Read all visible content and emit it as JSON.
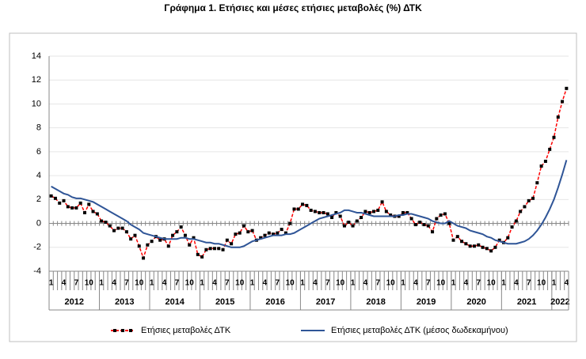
{
  "chart_data": {
    "type": "line",
    "title": "Γράφημα 1. Ετήσιες και μέσες ετήσιες μεταβολές (%) ΔΤΚ",
    "categories": [
      "1",
      null,
      null,
      "4",
      null,
      null,
      "7",
      null,
      null,
      "10",
      null,
      null,
      "1",
      null,
      null,
      "4",
      null,
      null,
      "7",
      null,
      null,
      "10",
      null,
      null,
      "1",
      null,
      null,
      "4",
      null,
      null,
      "7",
      null,
      null,
      "10",
      null,
      null,
      "1",
      null,
      null,
      "4",
      null,
      null,
      "7",
      null,
      null,
      "10",
      null,
      null,
      "1",
      null,
      null,
      "4",
      null,
      null,
      "7",
      null,
      null,
      "10",
      null,
      null,
      "1",
      null,
      null,
      "4",
      null,
      null,
      "7",
      null,
      null,
      "10",
      null,
      null,
      "1",
      null,
      null,
      "4",
      null,
      null,
      "7",
      null,
      null,
      "10",
      null,
      null,
      "1",
      null,
      null,
      "4",
      null,
      null,
      "7",
      null,
      null,
      "10",
      null,
      null,
      "1",
      null,
      null,
      "4",
      null,
      null,
      "7",
      null,
      null,
      "10",
      null,
      null,
      "1",
      null,
      null,
      "4",
      null,
      null,
      "7",
      null,
      null,
      "10",
      null,
      null,
      "1",
      null,
      null,
      "4"
    ],
    "years": [
      "2012",
      "2013",
      "2014",
      "2015",
      "2016",
      "2017",
      "2018",
      "2019",
      "2020",
      "2021",
      "2022"
    ],
    "series": [
      {
        "name": "Ετήσιες μεταβολές ΔΤΚ",
        "color": "#ff0000",
        "marker_color": "#000000",
        "dashed": true,
        "values": [
          2.3,
          2.1,
          1.7,
          1.9,
          1.4,
          1.3,
          1.3,
          1.7,
          0.9,
          1.6,
          1.0,
          0.8,
          0.2,
          0.1,
          -0.2,
          -0.6,
          -0.4,
          -0.4,
          -0.7,
          -1.3,
          -1.0,
          -1.9,
          -2.9,
          -1.8,
          -1.5,
          -1.1,
          -1.4,
          -1.3,
          -1.9,
          -1.0,
          -0.7,
          -0.3,
          -1.0,
          -1.8,
          -1.2,
          -2.6,
          -2.8,
          -2.2,
          -2.1,
          -2.1,
          -2.1,
          -2.2,
          -1.4,
          -1.7,
          -0.9,
          -0.8,
          -0.2,
          -0.7,
          -0.6,
          -1.4,
          -1.2,
          -1.0,
          -0.8,
          -0.9,
          -0.8,
          -0.5,
          -0.8,
          0.0,
          1.2,
          1.2,
          1.6,
          1.5,
          1.1,
          1.0,
          0.9,
          0.9,
          0.8,
          0.5,
          0.9,
          0.6,
          -0.2,
          0.1,
          -0.2,
          0.2,
          0.5,
          1.0,
          0.9,
          1.0,
          1.1,
          1.8,
          1.0,
          0.7,
          0.6,
          0.6,
          0.9,
          0.9,
          0.4,
          -0.1,
          0.1,
          -0.1,
          -0.2,
          -0.7,
          0.4,
          0.7,
          0.8,
          0.0,
          -1.4,
          -1.1,
          -1.5,
          -1.7,
          -1.9,
          -1.9,
          -1.8,
          -2.0,
          -2.1,
          -2.3,
          -2.0,
          -1.4,
          -1.6,
          -1.2,
          -0.3,
          0.2,
          1.0,
          1.4,
          1.9,
          2.1,
          3.4,
          4.8,
          5.2,
          6.2,
          7.2,
          8.9,
          10.2,
          11.3
        ]
      },
      {
        "name": "Ετήσιες μεταβολές ΔΤΚ (μέσος δωδεκαμήνου)",
        "color": "#2f5597",
        "dashed": false,
        "values": [
          3.1,
          2.9,
          2.7,
          2.5,
          2.4,
          2.2,
          2.1,
          2.1,
          2.0,
          1.9,
          1.8,
          1.6,
          1.4,
          1.2,
          1.0,
          0.8,
          0.6,
          0.4,
          0.2,
          -0.1,
          -0.3,
          -0.5,
          -0.8,
          -0.9,
          -1.0,
          -1.1,
          -1.2,
          -1.3,
          -1.3,
          -1.3,
          -1.3,
          -1.2,
          -1.2,
          -1.3,
          -1.3,
          -1.4,
          -1.5,
          -1.6,
          -1.6,
          -1.7,
          -1.7,
          -1.8,
          -1.9,
          -2.0,
          -2.0,
          -2.0,
          -1.9,
          -1.7,
          -1.5,
          -1.4,
          -1.3,
          -1.2,
          -1.1,
          -1.0,
          -1.0,
          -1.0,
          -0.9,
          -0.9,
          -0.8,
          -0.6,
          -0.4,
          -0.2,
          0.0,
          0.2,
          0.4,
          0.5,
          0.6,
          0.7,
          0.8,
          0.9,
          1.1,
          1.1,
          1.0,
          0.9,
          0.9,
          0.8,
          0.7,
          0.6,
          0.6,
          0.6,
          0.6,
          0.6,
          0.6,
          0.7,
          0.7,
          0.8,
          0.8,
          0.7,
          0.6,
          0.5,
          0.4,
          0.2,
          0.1,
          0.0,
          0.0,
          0.2,
          0.0,
          -0.2,
          -0.3,
          -0.4,
          -0.6,
          -0.7,
          -0.8,
          -0.9,
          -1.1,
          -1.2,
          -1.4,
          -1.5,
          -1.6,
          -1.7,
          -1.7,
          -1.7,
          -1.6,
          -1.5,
          -1.3,
          -1.0,
          -0.6,
          -0.1,
          0.5,
          1.2,
          2.0,
          3.0,
          4.1,
          5.3
        ]
      }
    ],
    "ylim": [
      -4,
      14
    ],
    "yticks": [
      -4,
      -2,
      0,
      2,
      4,
      6,
      8,
      10,
      12,
      14
    ],
    "grid": true
  }
}
